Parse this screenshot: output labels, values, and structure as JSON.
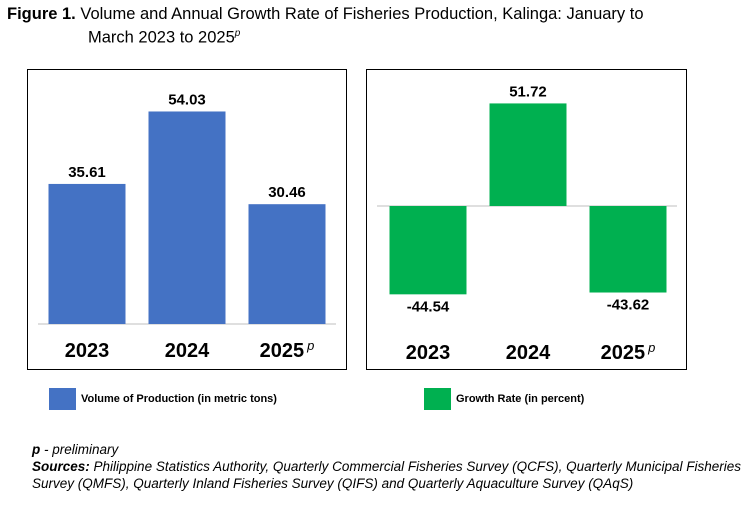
{
  "figure": {
    "label": "Figure 1.",
    "title_line1": "Volume and Annual Growth Rate of Fisheries Production, Kalinga: January to",
    "title_line2": "March 2023 to 2025",
    "title_sup": "p"
  },
  "chart_data": [
    {
      "type": "bar",
      "categories": [
        "2023",
        "2024",
        "2025"
      ],
      "category_superscripts": [
        "",
        "",
        "p"
      ],
      "series": [
        {
          "name": "Volume of Production (in metric tons)",
          "values": [
            35.61,
            54.03,
            30.46
          ],
          "color": "#4472C4"
        }
      ],
      "data_labels": [
        "35.61",
        "54.03",
        "30.46"
      ],
      "ylim": [
        0,
        60
      ],
      "grid": false
    },
    {
      "type": "bar",
      "categories": [
        "2023",
        "2024",
        "2025"
      ],
      "category_superscripts": [
        "",
        "",
        "p"
      ],
      "series": [
        {
          "name": "Growth Rate (in percent)",
          "values": [
            -44.54,
            51.72,
            -43.62
          ],
          "color": "#00B050"
        }
      ],
      "data_labels": [
        "-44.54",
        "51.72",
        "-43.62"
      ],
      "ylim": [
        -60,
        60
      ],
      "grid": false
    }
  ],
  "legend": {
    "volume_label": "Volume of Production (in metric tons)",
    "volume_color": "#4472C4",
    "growth_label": "Growth Rate (in percent)",
    "growth_color": "#00B050"
  },
  "notes": {
    "p_label": "p",
    "p_text": " - preliminary",
    "sources_label": "Sources:",
    "sources_text": "  Philippine Statistics Authority, Quarterly Commercial Fisheries Survey (QCFS), Quarterly Municipal Fisheries Survey (QMFS), Quarterly Inland Fisheries Survey (QIFS) and Quarterly Aquaculture Survey (QAqS)"
  }
}
